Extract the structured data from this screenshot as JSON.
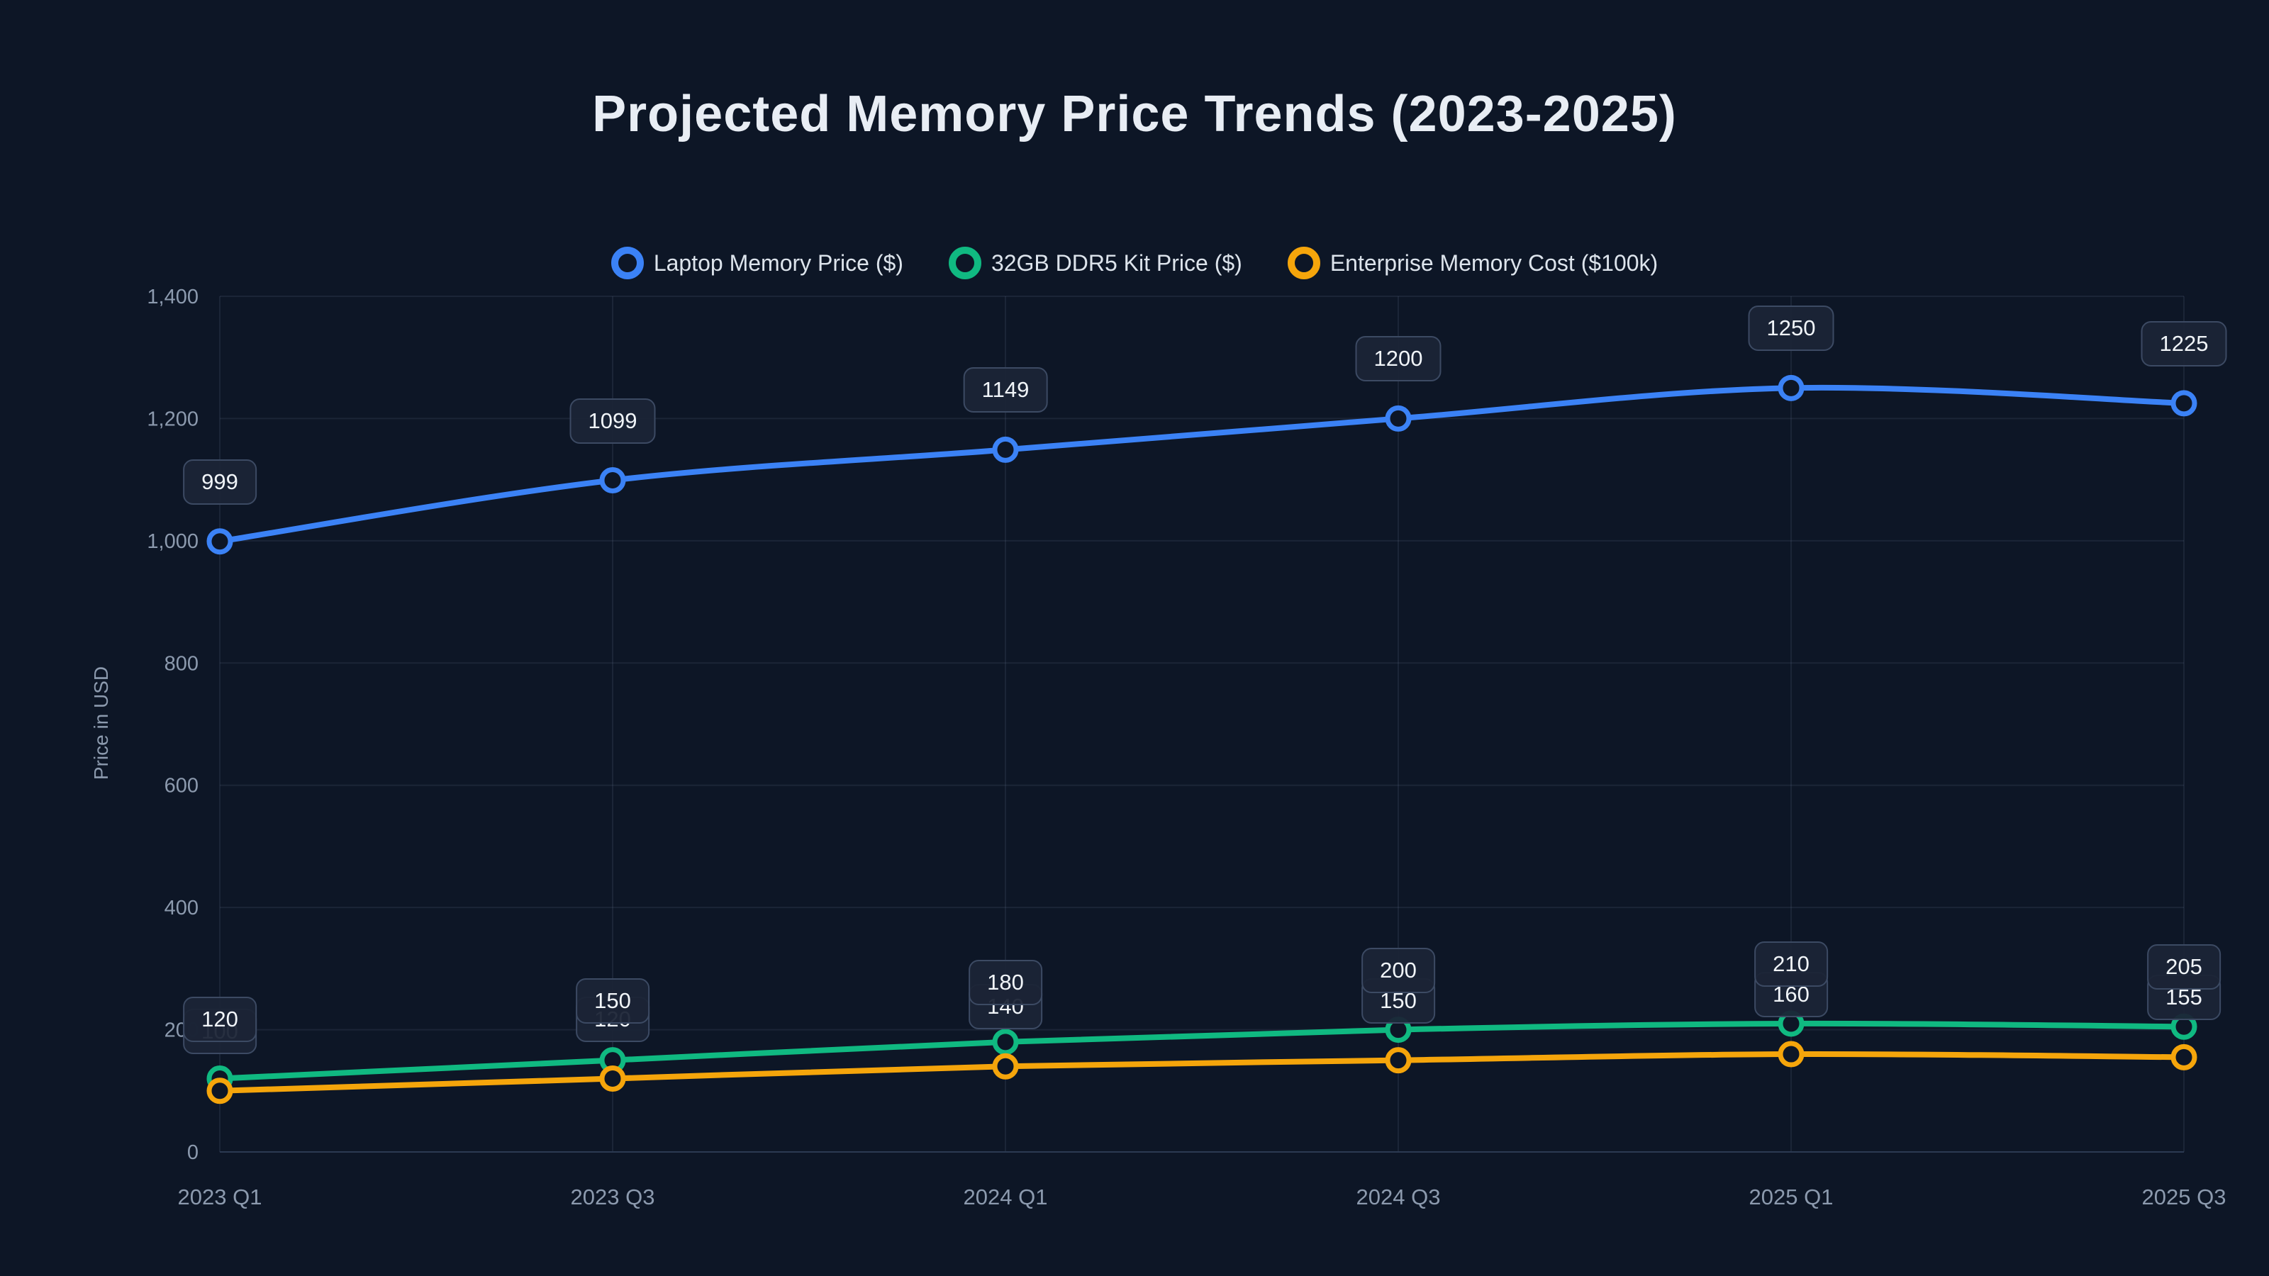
{
  "title": "Projected Memory Price Trends (2023-2025)",
  "colors": {
    "background": "#0d1626",
    "title_text": "#e8edf4",
    "legend_text": "#dde4ec",
    "axis_text": "#8c9aae",
    "axis_line": "#2c3a52",
    "grid": "rgba(120,140,170,0.13)",
    "badge_bg": "#1b2436",
    "badge_border": "#3c4a63",
    "badge_text": "#f1f5f9"
  },
  "chart_data": {
    "type": "line",
    "title": "Projected Memory Price Trends (2023-2025)",
    "ylabel": "Price in USD",
    "xlabel": "",
    "ylim": [
      0,
      1400
    ],
    "ytick_interval": 200,
    "ytick_labels": [
      "0",
      "200",
      "400",
      "600",
      "800",
      "1,000",
      "1,200",
      "1,400"
    ],
    "grid": true,
    "legend_position": "top",
    "smooth": true,
    "categories": [
      "2023 Q1",
      "2023 Q3",
      "2024 Q1",
      "2024 Q3",
      "2025 Q1",
      "2025 Q3"
    ],
    "series": [
      {
        "name": "Laptop Memory Price ($)",
        "color": "#3b82f6",
        "values": [
          999,
          1099,
          1149,
          1200,
          1250,
          1225
        ]
      },
      {
        "name": "32GB DDR5 Kit Price ($)",
        "color": "#10b981",
        "values": [
          120,
          150,
          180,
          200,
          210,
          205
        ]
      },
      {
        "name": "Enterprise Memory Cost ($100k)",
        "color": "#f5a50b",
        "values": [
          100,
          120,
          140,
          150,
          160,
          155
        ]
      }
    ]
  }
}
